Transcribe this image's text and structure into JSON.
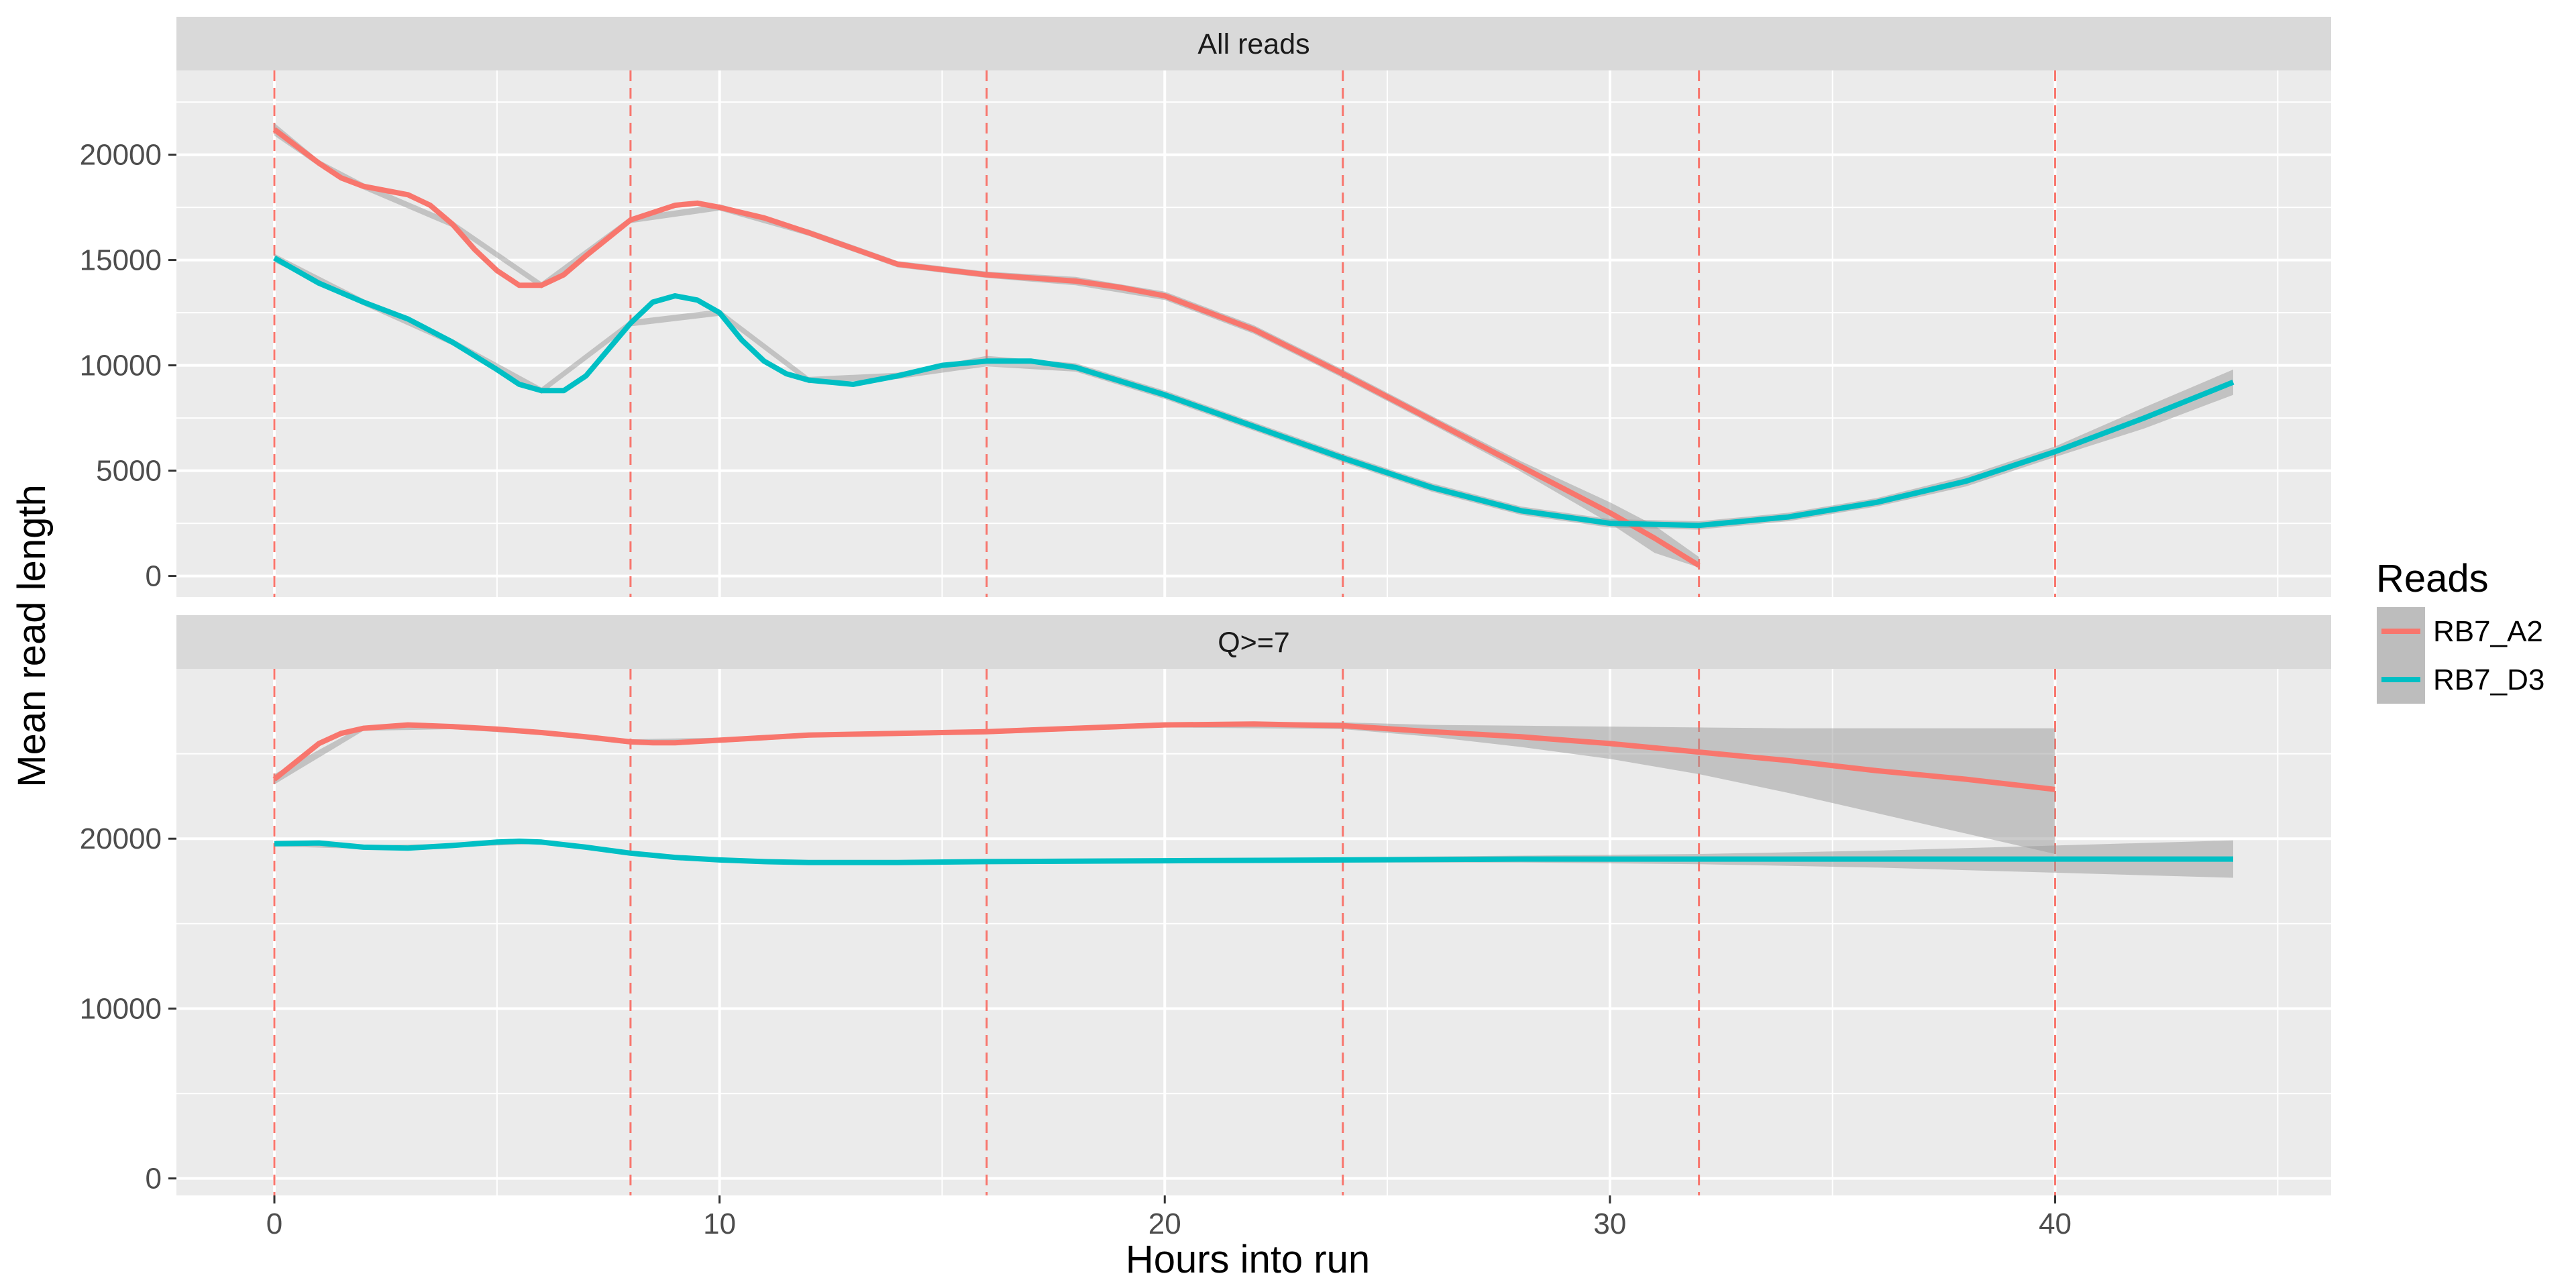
{
  "chart_data": {
    "type": "line",
    "xlabel": "Hours into run",
    "ylabel": "Mean read length",
    "x_ticks": [
      0,
      10,
      20,
      30,
      40
    ],
    "xlim": [
      -2.2,
      46.2
    ],
    "grid": true,
    "legend": {
      "title": "Reads",
      "position": "right",
      "entries": [
        {
          "name": "RB7_A2",
          "color": "#F8766D"
        },
        {
          "name": "RB7_D3",
          "color": "#00BFC4"
        }
      ]
    },
    "vlines": {
      "x": [
        0,
        8,
        16,
        24,
        32,
        40
      ],
      "color": "#F8766D",
      "style": "dashed"
    },
    "band_color": "#999999",
    "panels": [
      {
        "title": "All reads",
        "ylim": [
          -1000,
          24000
        ],
        "y_ticks": [
          0,
          5000,
          10000,
          15000,
          20000
        ],
        "y_tick_labels": [
          "0",
          "5000",
          "10000",
          "15000",
          "20000"
        ],
        "series": [
          {
            "name": "RB7_A2",
            "color": "#F8766D",
            "x": [
              0,
              1,
              1.5,
              2,
              3,
              3.5,
              4,
              4.5,
              5,
              5.5,
              6,
              6.5,
              7,
              8,
              9,
              9.5,
              10,
              11,
              12,
              14,
              16,
              18,
              19,
              20,
              22,
              24,
              26,
              28,
              30,
              31,
              32
            ],
            "y": [
              21200,
              19600,
              18900,
              18500,
              18100,
              17600,
              16700,
              15500,
              14500,
              13800,
              13800,
              14300,
              15200,
              16900,
              17600,
              17700,
              17500,
              17000,
              16300,
              14800,
              14300,
              14000,
              13700,
              13300,
              11700,
              9600,
              7400,
              5200,
              3000,
              1800,
              500
            ],
            "band_x": [
              0,
              1,
              2,
              4,
              6,
              8,
              10,
              12,
              14,
              16,
              18,
              20,
              22,
              24,
              26,
              28,
              30,
              31,
              32
            ],
            "band_lower": [
              20900,
              19450,
              18350,
              16550,
              13650,
              16750,
              17350,
              16150,
              14650,
              14150,
              13800,
              13100,
              11500,
              9400,
              7200,
              4950,
              2500,
              1100,
              400
            ],
            "band_upper": [
              21500,
              19750,
              18650,
              16850,
              13950,
              17050,
              17650,
              16450,
              14950,
              14450,
              14200,
              13500,
              11900,
              9800,
              7600,
              5450,
              3500,
              2400,
              900
            ]
          },
          {
            "name": "RB7_D3",
            "color": "#00BFC4",
            "x": [
              0,
              1,
              2,
              3,
              4,
              5,
              5.5,
              6,
              6.5,
              7,
              8,
              8.5,
              9,
              9.5,
              10,
              10.5,
              11,
              11.5,
              12,
              13,
              14,
              15,
              16,
              17,
              18,
              20,
              22,
              24,
              26,
              28,
              30,
              32,
              34,
              36,
              38,
              40,
              42,
              44
            ],
            "y": [
              15100,
              13900,
              13000,
              12200,
              11100,
              9800,
              9100,
              8800,
              8800,
              9500,
              12000,
              13000,
              13300,
              13100,
              12500,
              11200,
              10200,
              9600,
              9300,
              9100,
              9500,
              10000,
              10200,
              10200,
              9900,
              8600,
              7100,
              5600,
              4200,
              3100,
              2500,
              2400,
              2800,
              3500,
              4500,
              5900,
              7500,
              9200
            ],
            "band_x": [
              0,
              2,
              4,
              6,
              8,
              10,
              12,
              14,
              16,
              18,
              20,
              22,
              24,
              26,
              28,
              30,
              32,
              34,
              36,
              38,
              40,
              42,
              44
            ],
            "band_lower": [
              14900,
              12850,
              10950,
              8650,
              11850,
              12350,
              9150,
              9350,
              9950,
              9700,
              8400,
              6900,
              5400,
              4000,
              2900,
              2300,
              2200,
              2600,
              3300,
              4250,
              5650,
              7000,
              8600
            ],
            "band_upper": [
              15300,
              13150,
              11250,
              8950,
              12150,
              12650,
              9450,
              9650,
              10450,
              10100,
              8800,
              7300,
              5800,
              4400,
              3300,
              2700,
              2600,
              3000,
              3700,
              4750,
              6150,
              8000,
              9800
            ]
          }
        ]
      },
      {
        "title": "Q>=7",
        "ylim": [
          -1000,
          30000
        ],
        "y_ticks": [
          0,
          10000,
          20000
        ],
        "y_tick_labels": [
          "0",
          "10000",
          "20000"
        ],
        "series": [
          {
            "name": "RB7_A2",
            "color": "#F8766D",
            "x": [
              0,
              1,
              1.5,
              2,
              3,
              4,
              5,
              6,
              7,
              8,
              8.5,
              9,
              10,
              12,
              14,
              16,
              18,
              20,
              22,
              24,
              26,
              28,
              30,
              32,
              34,
              36,
              38,
              40
            ],
            "y": [
              23500,
              25600,
              26200,
              26500,
              26700,
              26600,
              26450,
              26250,
              26000,
              25700,
              25650,
              25650,
              25800,
              26100,
              26200,
              26300,
              26500,
              26700,
              26750,
              26650,
              26300,
              26000,
              25600,
              25100,
              24600,
              24000,
              23500,
              22900
            ],
            "band_x": [
              0,
              2,
              4,
              6,
              8,
              10,
              12,
              16,
              20,
              24,
              26,
              28,
              30,
              32,
              34,
              36,
              38,
              40
            ],
            "band_lower": [
              23200,
              26350,
              26450,
              26100,
              25550,
              25650,
              25950,
              26150,
              26550,
              26450,
              26000,
              25400,
              24700,
              23800,
              22700,
              21500,
              20300,
              19100
            ],
            "band_upper": [
              23800,
              26650,
              26750,
              26400,
              25850,
              25950,
              26250,
              26450,
              26850,
              26850,
              26700,
              26650,
              26600,
              26550,
              26500,
              26500,
              26500,
              26500
            ]
          },
          {
            "name": "RB7_D3",
            "color": "#00BFC4",
            "x": [
              0,
              1,
              2,
              3,
              4,
              5,
              5.5,
              6,
              7,
              8,
              9,
              10,
              11,
              12,
              13,
              14,
              16,
              20,
              24,
              28,
              32,
              36,
              40,
              44
            ],
            "y": [
              19700,
              19750,
              19500,
              19450,
              19600,
              19800,
              19850,
              19800,
              19500,
              19150,
              18900,
              18750,
              18650,
              18600,
              18600,
              18600,
              18650,
              18700,
              18750,
              18800,
              18800,
              18800,
              18800,
              18800
            ],
            "band_x": [
              0,
              2,
              4,
              6,
              8,
              10,
              12,
              14,
              16,
              20,
              24,
              28,
              32,
              36,
              40,
              44
            ],
            "band_lower": [
              19550,
              19400,
              19500,
              19700,
              19050,
              18650,
              18500,
              18500,
              18550,
              18600,
              18600,
              18600,
              18500,
              18300,
              18000,
              17700
            ],
            "band_upper": [
              19850,
              19600,
              19700,
              19900,
              19250,
              18850,
              18700,
              18700,
              18750,
              18800,
              18900,
              19000,
              19100,
              19300,
              19600,
              19900
            ]
          }
        ]
      }
    ]
  }
}
